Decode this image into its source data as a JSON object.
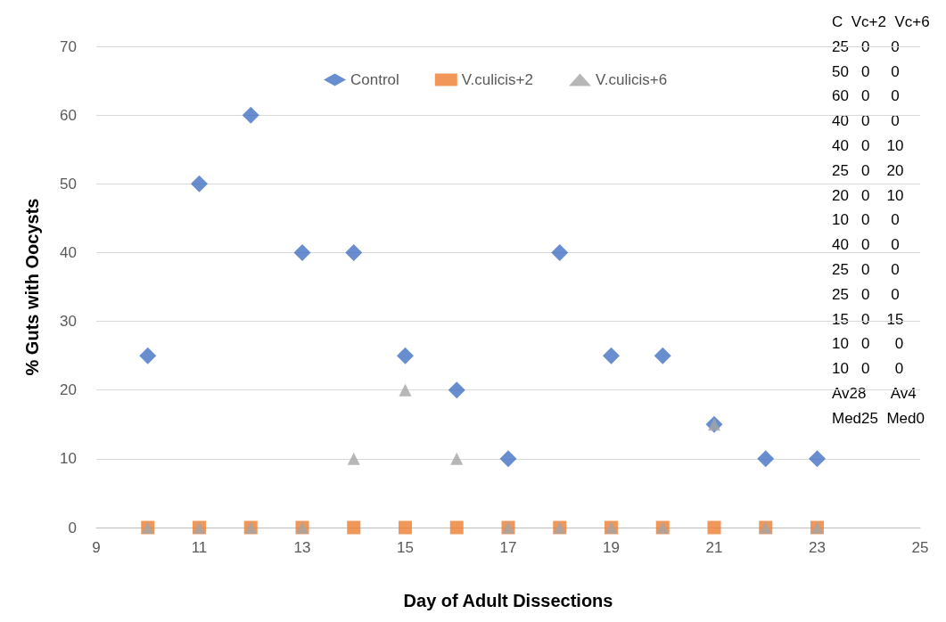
{
  "chart_data": {
    "type": "scatter",
    "xlabel": "Day of Adult Dissections",
    "ylabel": "% Guts with Oocysts",
    "x": [
      10,
      11,
      12,
      13,
      14,
      15,
      16,
      17,
      18,
      19,
      20,
      21,
      22,
      23
    ],
    "series": [
      {
        "name": "Control",
        "color": "#4472c4",
        "marker": "diamond",
        "values": [
          25,
          50,
          60,
          40,
          40,
          25,
          20,
          10,
          40,
          25,
          25,
          15,
          10,
          10
        ]
      },
      {
        "name": "V.culicis+2",
        "color": "#ed7d31",
        "marker": "square",
        "values": [
          0,
          0,
          0,
          0,
          0,
          0,
          0,
          0,
          0,
          0,
          0,
          0,
          0,
          0
        ]
      },
      {
        "name": "V.culicis+6",
        "color": "#a5a5a5",
        "marker": "triangle",
        "values": [
          0,
          0,
          0,
          0,
          10,
          20,
          10,
          0,
          0,
          0,
          0,
          15,
          0,
          0
        ]
      }
    ],
    "xlim": [
      9,
      25
    ],
    "xticks": [
      9,
      11,
      13,
      15,
      17,
      19,
      21,
      23,
      25
    ],
    "ylim": [
      0,
      70
    ],
    "yticks": [
      0,
      10,
      20,
      30,
      40,
      50,
      60,
      70
    ],
    "grid": "y",
    "legend": "top",
    "annotations": [
      "C  Vc+2  Vc+6",
      "25   0     0",
      "50   0     0",
      "60   0     0",
      "40   0     0",
      "40   0    10",
      "25   0    20",
      "20   0    10",
      "10   0     0",
      "40   0     0",
      "25   0     0",
      "25   0     0",
      "15   0    15",
      "10   0      0",
      "10   0      0",
      "Av28      Av4",
      "Med25  Med0"
    ]
  }
}
